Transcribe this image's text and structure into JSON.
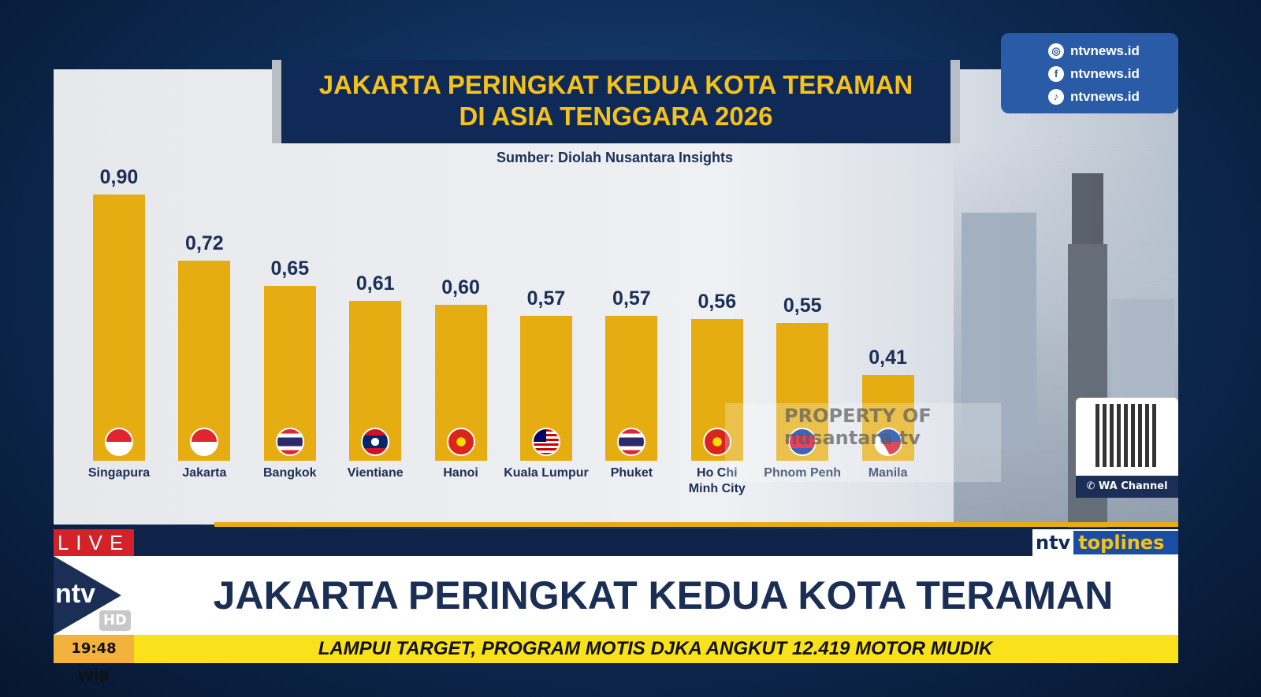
{
  "social": {
    "instagram": "ntvnews.id",
    "facebook": "ntvnews.id",
    "tiktok": "ntvnews.id"
  },
  "qr": {
    "label": "WA Channel"
  },
  "watermark": "PROPERTY OF nusantara tv",
  "lower_third": {
    "live": "LIVE",
    "logo": "ntv",
    "hd": "HD",
    "headline": "JAKARTA PERINGKAT KEDUA KOTA TERAMAN",
    "time": "19:48 WIB",
    "ticker": "LAMPUI TARGET, PROGRAM MOTIS DJKA ANGKUT 12.419 MOTOR MUDIK",
    "brand_ntv": "ntv",
    "brand_toplines": "toplines"
  },
  "colors": {
    "bar": "#e5ad12",
    "title_bg": "#0f2a57",
    "title_text": "#f5c21a",
    "live": "#d3222a",
    "ticker": "#f9e21c"
  },
  "chart_data": {
    "type": "bar",
    "title_line1": "JAKARTA PERINGKAT KEDUA KOTA TERAMAN",
    "title_line2": "DI ASIA TENGGARA 2026",
    "subtitle": "Sumber: Diolah Nusantara Insights",
    "categories": [
      "Singapura",
      "Jakarta",
      "Bangkok",
      "Vientiane",
      "Hanoi",
      "Kuala Lumpur",
      "Phuket",
      "Ho Chi Minh City",
      "Phnom Penh",
      "Manila"
    ],
    "values": [
      0.9,
      0.72,
      0.65,
      0.61,
      0.6,
      0.57,
      0.57,
      0.56,
      0.55,
      0.41
    ],
    "value_labels": [
      "0,90",
      "0,72",
      "0,65",
      "0,61",
      "0,60",
      "0,57",
      "0,57",
      "0,56",
      "0,55",
      "0,41"
    ],
    "flags": [
      "singapore",
      "indonesia",
      "thailand",
      "laos",
      "vietnam",
      "malaysia",
      "thailand",
      "vietnam",
      "cambodia",
      "philippines"
    ],
    "grid": false,
    "legend": "none"
  }
}
